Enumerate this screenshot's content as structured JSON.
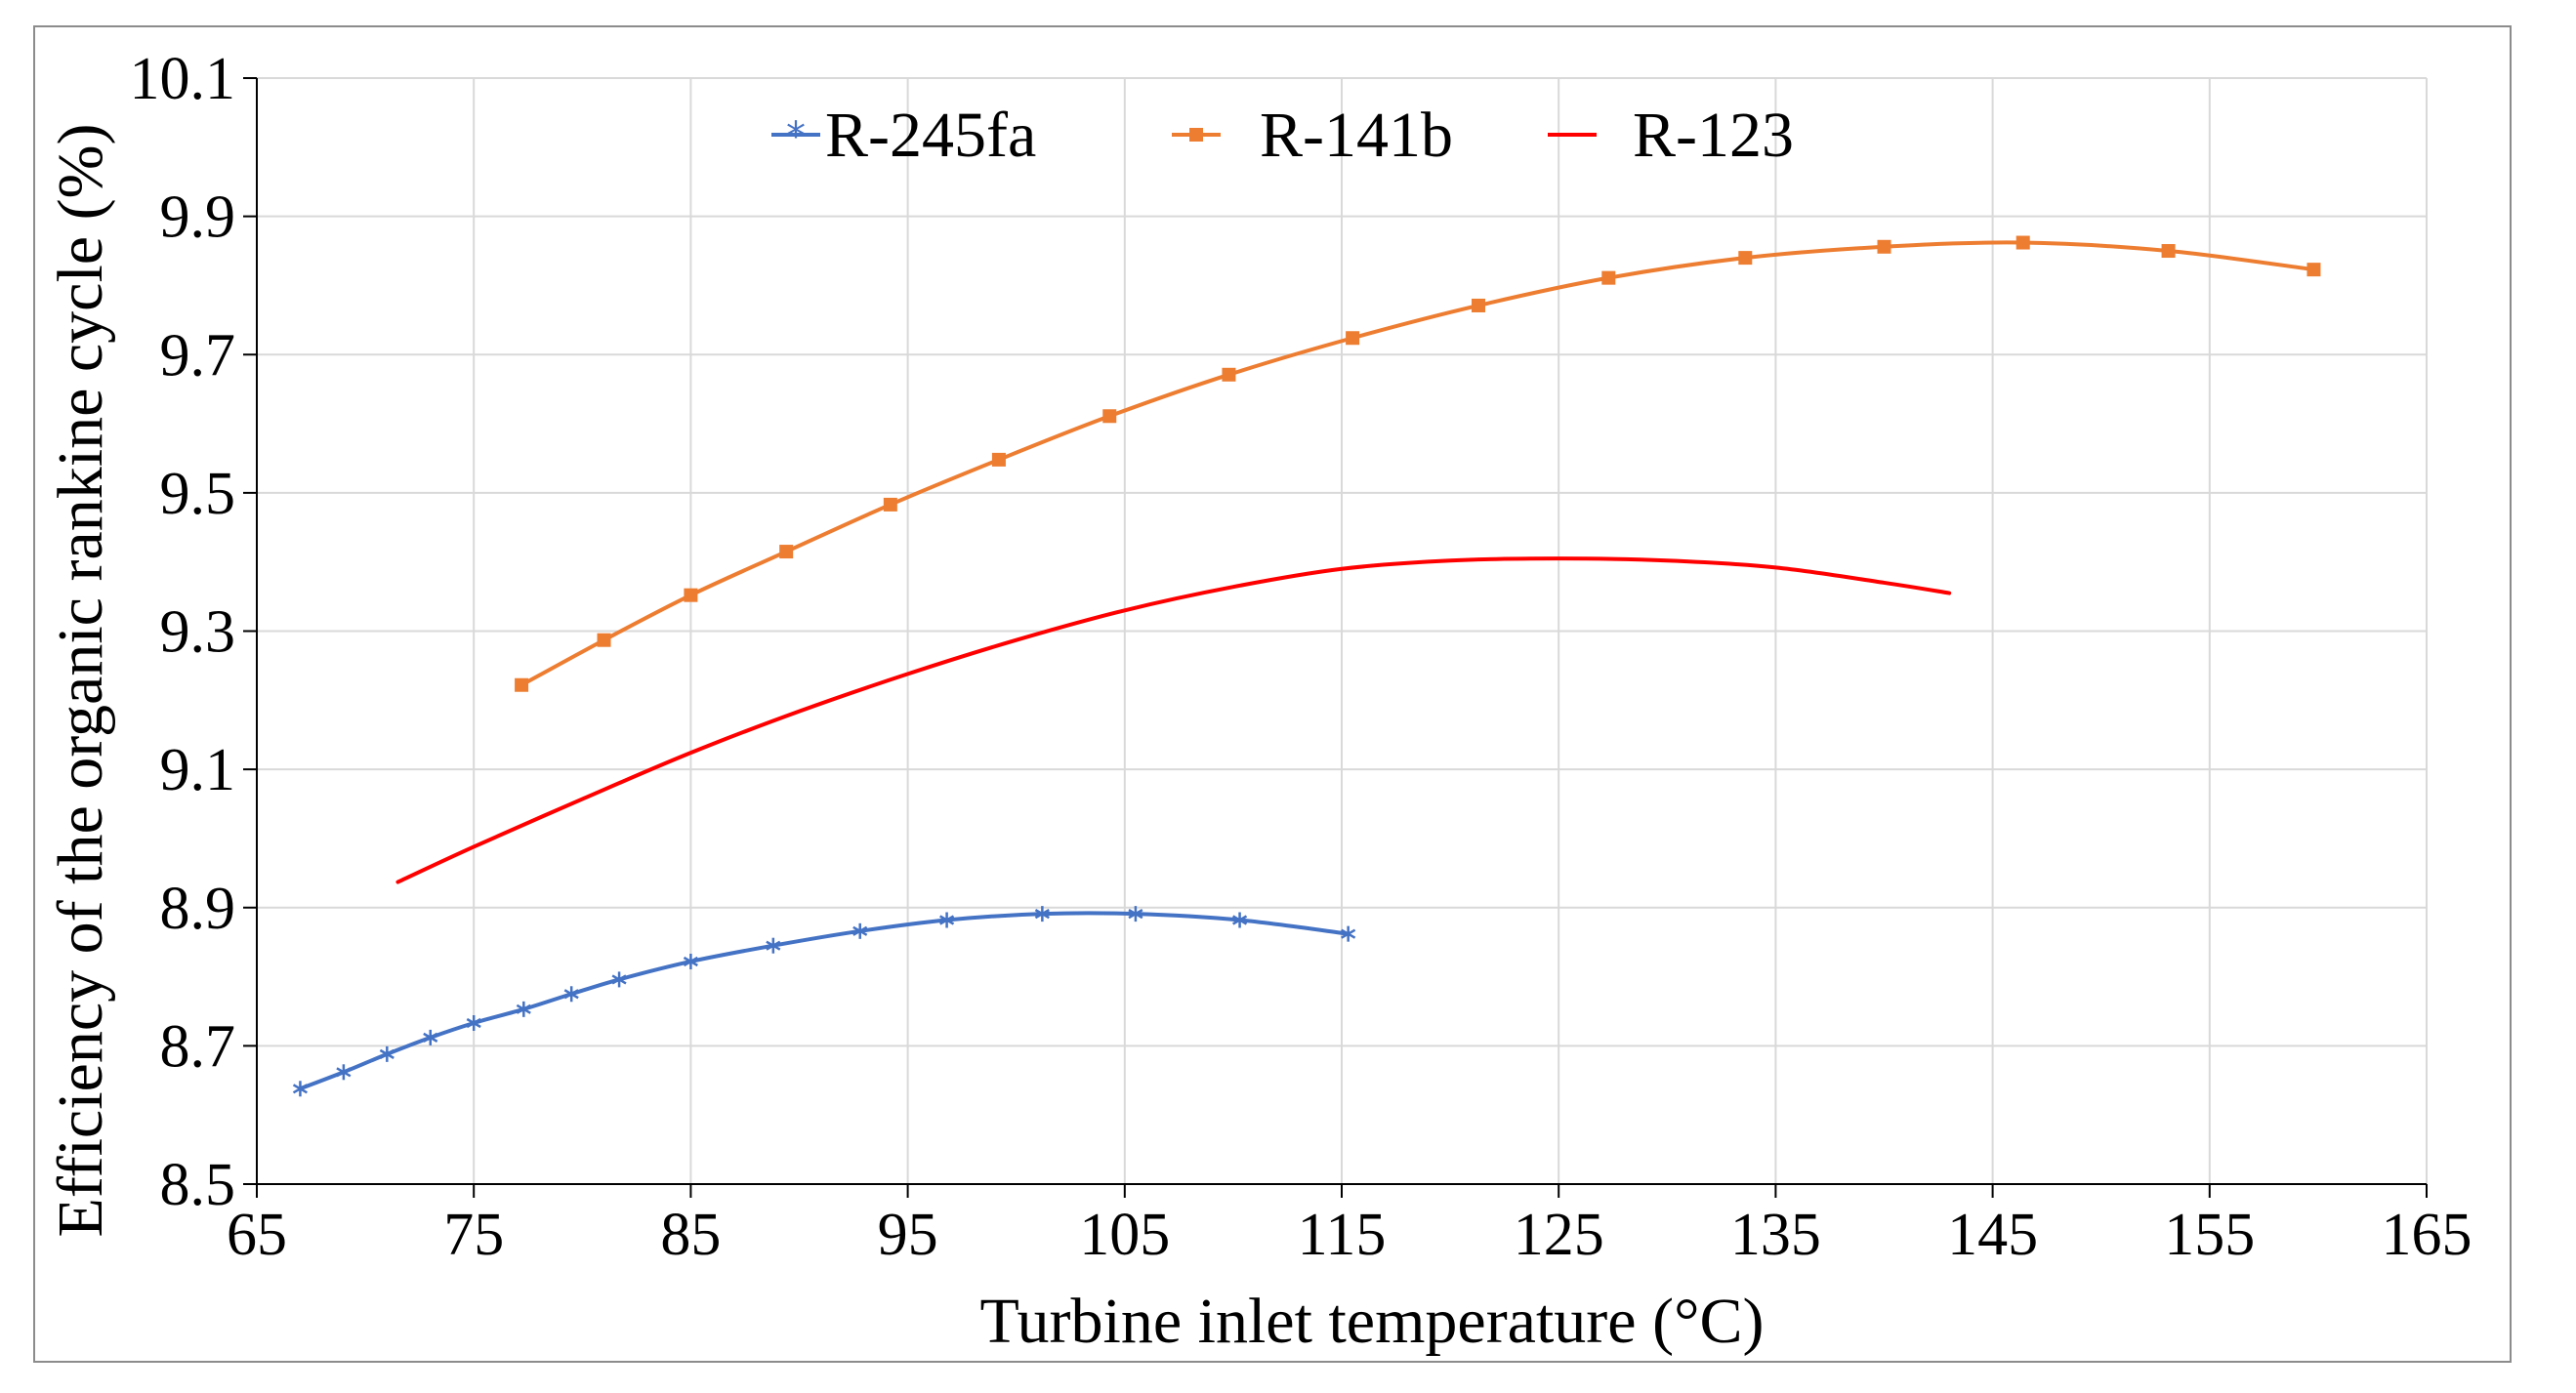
{
  "chart_data": {
    "type": "line",
    "title": "",
    "xlabel": "Turbine inlet temperature (°C)",
    "ylabel": "Efficiency of the organic rankine cycle (%)",
    "xlim": [
      65,
      165
    ],
    "ylim": [
      8.5,
      10.1
    ],
    "xticks": [
      65,
      75,
      85,
      95,
      105,
      115,
      125,
      135,
      145,
      155,
      165
    ],
    "xtick_labels": [
      "65",
      "75",
      "85",
      "95",
      "105",
      "115",
      "125",
      "135",
      "145",
      "155",
      "165"
    ],
    "yticks": [
      8.5,
      8.7,
      8.9,
      9.1,
      9.3,
      9.5,
      9.7,
      9.9,
      10.1
    ],
    "ytick_labels": [
      "8.5",
      "8.7",
      "8.9",
      "9.1",
      "9.3",
      "9.5",
      "9.7",
      "9.9",
      "10.1"
    ],
    "grid": true,
    "legend_position": "top-center",
    "series": [
      {
        "name": "R-245fa",
        "color": "#4472c4",
        "marker": "asterisk",
        "x": [
          67,
          69,
          71,
          73,
          75,
          77.3,
          79.5,
          81.7,
          85,
          88.8,
          92.8,
          96.8,
          101.2,
          105.5,
          110.3,
          115.3
        ],
        "y": [
          8.638,
          8.662,
          8.688,
          8.712,
          8.733,
          8.753,
          8.775,
          8.796,
          8.822,
          8.845,
          8.866,
          8.882,
          8.891,
          8.891,
          8.882,
          8.862
        ]
      },
      {
        "name": "R-141b",
        "color": "#ed7d31",
        "marker": "square",
        "x": [
          77.2,
          81,
          85,
          89.4,
          94.2,
          99.2,
          104.3,
          109.8,
          115.5,
          121.3,
          127.3,
          133.6,
          140,
          146.4,
          153.1,
          159.8
        ],
        "y": [
          9.222,
          9.287,
          9.352,
          9.415,
          9.483,
          9.548,
          9.611,
          9.671,
          9.724,
          9.771,
          9.811,
          9.84,
          9.856,
          9.862,
          9.85,
          9.823
        ]
      },
      {
        "name": "R-123",
        "color": "#ff0000",
        "marker": "none",
        "x": [
          71.5,
          75,
          80,
          85,
          90,
          95,
          100,
          105,
          110,
          115,
          120,
          125,
          130,
          135,
          140,
          143
        ],
        "y": [
          8.937,
          8.988,
          9.057,
          9.124,
          9.184,
          9.238,
          9.287,
          9.33,
          9.364,
          9.39,
          9.402,
          9.405,
          9.402,
          9.392,
          9.37,
          9.355
        ]
      }
    ]
  }
}
